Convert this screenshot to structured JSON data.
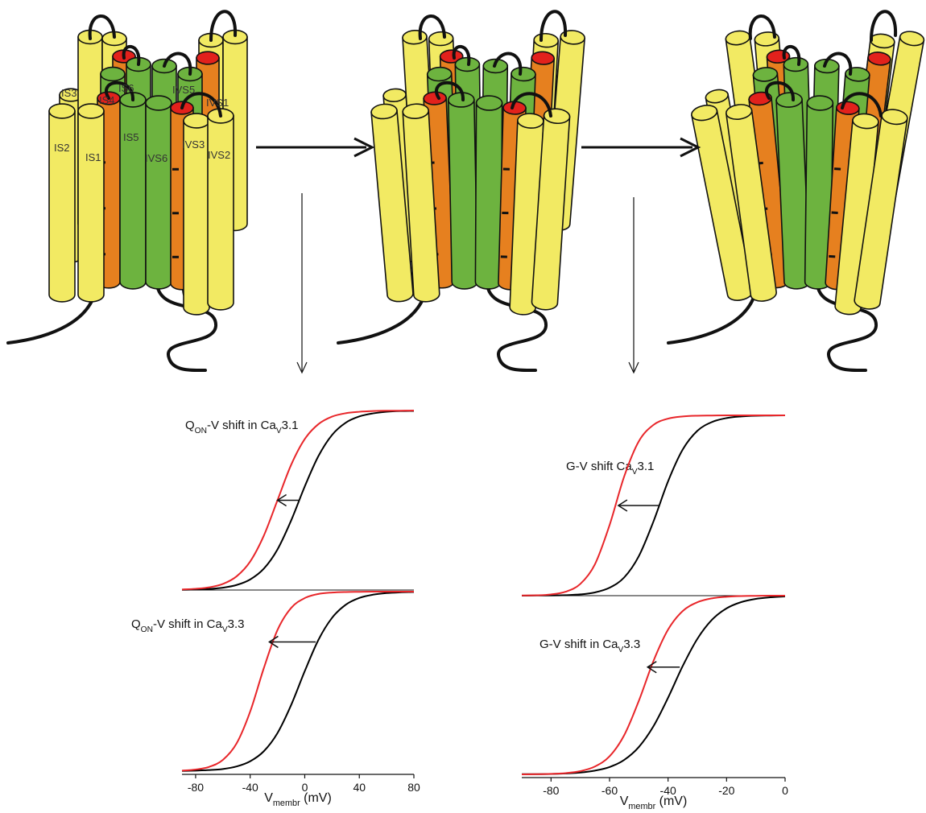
{
  "diagram": {
    "labels": [
      "IS3",
      "IS4",
      "IS6",
      "IVS5",
      "IVS1",
      "IS2",
      "IS1",
      "IS5",
      "IVS6",
      "IVS3",
      "IVS2"
    ]
  },
  "chart_data": [
    {
      "type": "line",
      "title": [
        "Q",
        "ON",
        "-V shift in Ca",
        "V",
        "3.1"
      ],
      "x": [
        -90,
        -80,
        -70,
        -60,
        -50,
        -40,
        -30,
        -20,
        -10,
        0,
        10,
        20,
        30,
        40,
        50,
        60,
        70,
        80
      ],
      "xlim": [
        -90,
        80
      ],
      "ylim": [
        0,
        1
      ],
      "baseline": true,
      "series": [
        {
          "color": "#000000",
          "values": [
            0.001,
            0.003,
            0.006,
            0.013,
            0.028,
            0.059,
            0.119,
            0.226,
            0.387,
            0.577,
            0.746,
            0.864,
            0.932,
            0.967,
            0.984,
            0.993,
            0.997,
            0.998
          ]
        },
        {
          "color": "#e8262a",
          "values": [
            0.003,
            0.007,
            0.015,
            0.034,
            0.076,
            0.159,
            0.303,
            0.5,
            0.697,
            0.841,
            0.924,
            0.966,
            0.985,
            0.993,
            0.997,
            0.999,
            0.999,
            1
          ]
        }
      ],
      "shift_arrow": {
        "from": -4,
        "to": -20,
        "level": 0.5
      }
    },
    {
      "type": "line",
      "title": [
        "Q",
        "ON",
        "-V shift in Ca",
        "V",
        "3.3"
      ],
      "x": [
        -90,
        -80,
        -70,
        -60,
        -50,
        -40,
        -30,
        -20,
        -10,
        0,
        10,
        20,
        30,
        40,
        50,
        60,
        70,
        80
      ],
      "xlim": [
        -90,
        80
      ],
      "ylim": [
        0,
        1
      ],
      "xticks": [
        -80,
        -40,
        0,
        40,
        80
      ],
      "x_label": [
        "V",
        "membr",
        " (mV)"
      ],
      "series": [
        {
          "color": "#000000",
          "values": [
            0.001,
            0.003,
            0.006,
            0.012,
            0.026,
            0.055,
            0.111,
            0.212,
            0.368,
            0.557,
            0.731,
            0.854,
            0.927,
            0.965,
            0.983,
            0.992,
            0.996,
            0.998
          ]
        },
        {
          "color": "#e8262a",
          "values": [
            0.003,
            0.009,
            0.024,
            0.063,
            0.154,
            0.332,
            0.574,
            0.786,
            0.909,
            0.964,
            0.987,
            0.995,
            0.998,
            0.999,
            1,
            1,
            1,
            1
          ]
        }
      ],
      "shift_arrow": {
        "from": 8,
        "to": -26,
        "level": 0.72
      }
    },
    {
      "type": "line",
      "title": [
        "G-V shift Ca",
        "V",
        "3.1"
      ],
      "x": [
        -90,
        -85,
        -80,
        -75,
        -70,
        -65,
        -60,
        -55,
        -50,
        -45,
        -40,
        -35,
        -30,
        -25,
        -20,
        -15,
        -10,
        -5,
        0
      ],
      "xlim": [
        -90,
        0
      ],
      "ylim": [
        0,
        1
      ],
      "baseline": true,
      "series": [
        {
          "color": "#000000",
          "values": [
            0,
            0.001,
            0.001,
            0.003,
            0.007,
            0.018,
            0.044,
            0.101,
            0.219,
            0.411,
            0.634,
            0.81,
            0.914,
            0.963,
            0.985,
            0.994,
            0.998,
            0.999,
            1
          ]
        },
        {
          "color": "#e8262a",
          "values": [
            0.001,
            0.002,
            0.007,
            0.022,
            0.065,
            0.174,
            0.391,
            0.661,
            0.856,
            0.947,
            0.982,
            0.994,
            0.998,
            0.999,
            1,
            1,
            1,
            1,
            1
          ]
        }
      ],
      "shift_arrow": {
        "from": -43,
        "to": -57,
        "level": 0.5
      }
    },
    {
      "type": "line",
      "title": [
        "G-V shift in Ca",
        "V",
        "3.3"
      ],
      "x": [
        -90,
        -85,
        -80,
        -75,
        -70,
        -65,
        -60,
        -55,
        -50,
        -45,
        -40,
        -35,
        -30,
        -25,
        -20,
        -15,
        -10,
        -5,
        0
      ],
      "xlim": [
        -90,
        0
      ],
      "ylim": [
        0,
        1
      ],
      "xticks": [
        -80,
        -60,
        -40,
        -20,
        0
      ],
      "x_label": [
        "V",
        "membr",
        " (mV)"
      ],
      "series": [
        {
          "color": "#000000",
          "values": [
            0.001,
            0.001,
            0.002,
            0.005,
            0.01,
            0.021,
            0.041,
            0.081,
            0.153,
            0.269,
            0.429,
            0.606,
            0.758,
            0.865,
            0.929,
            0.964,
            0.982,
            0.991,
            0.996
          ]
        },
        {
          "color": "#e8262a",
          "values": [
            0,
            0.001,
            0.003,
            0.007,
            0.018,
            0.044,
            0.101,
            0.219,
            0.411,
            0.634,
            0.81,
            0.914,
            0.963,
            0.985,
            0.994,
            0.998,
            0.999,
            1,
            1
          ]
        }
      ],
      "shift_arrow": {
        "from": -36,
        "to": -47,
        "level": 0.6
      }
    }
  ]
}
